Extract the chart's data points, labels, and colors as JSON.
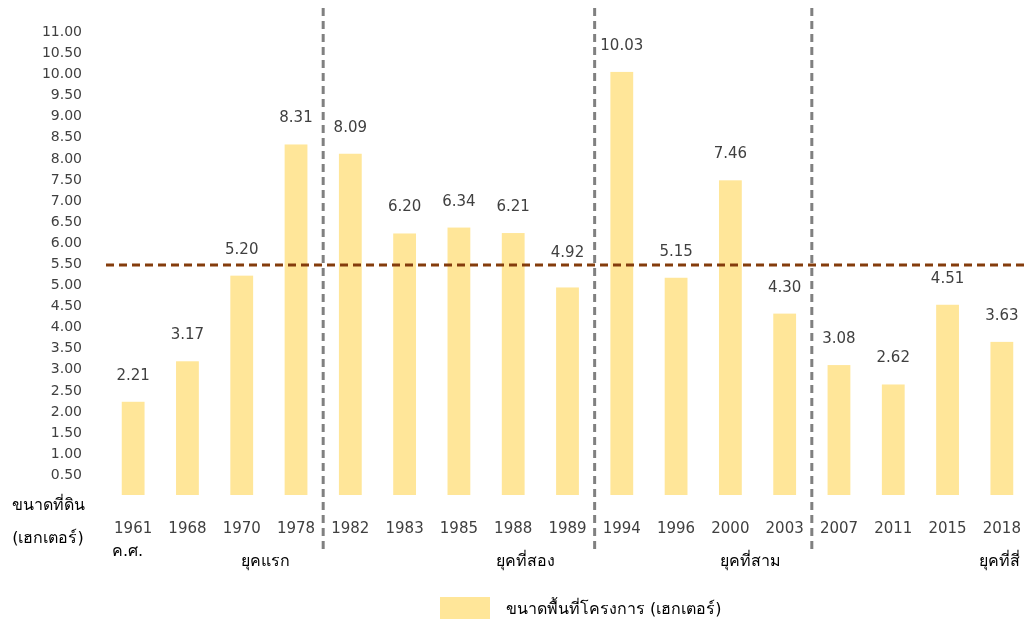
{
  "chart_data": {
    "type": "bar",
    "categories": [
      "1961",
      "1968",
      "1970",
      "1978",
      "1982",
      "1983",
      "1985",
      "1988",
      "1989",
      "1994",
      "1996",
      "2000",
      "2003",
      "2007",
      "2011",
      "2015",
      "2018"
    ],
    "series": [
      {
        "name": "ขนาดพื้นที่โครงการ (เฮกเตอร์)",
        "color": "#ffe699",
        "values": [
          2.21,
          3.17,
          5.2,
          8.31,
          8.09,
          6.2,
          6.34,
          6.21,
          4.92,
          10.03,
          5.15,
          7.46,
          4.3,
          3.08,
          2.62,
          4.51,
          3.63
        ]
      }
    ],
    "ylabel": "ขนาดที่ดิน (เฮกเตอร์)",
    "ylim": [
      0,
      11
    ],
    "yticks": [
      {
        "value": 0.5,
        "label": "0.50"
      },
      {
        "value": 1,
        "label": "1.00"
      },
      {
        "value": 1.5,
        "label": "1.50"
      },
      {
        "value": 2,
        "label": "2.00"
      },
      {
        "value": 2.5,
        "label": "2.50"
      },
      {
        "value": 3,
        "label": "3.00"
      },
      {
        "value": 3.5,
        "label": "3.50"
      },
      {
        "value": 4,
        "label": "4.00"
      },
      {
        "value": 4.5,
        "label": "4.50"
      },
      {
        "value": 5,
        "label": "5.00"
      },
      {
        "value": 5.5,
        "label": "5.50"
      },
      {
        "value": 6,
        "label": "6.00"
      },
      {
        "value": 6.5,
        "label": "6.50"
      },
      {
        "value": 7,
        "label": "7.00"
      },
      {
        "value": 7.5,
        "label": "7.50"
      },
      {
        "value": 8,
        "label": "8.00"
      },
      {
        "value": 8.5,
        "label": "8.50"
      },
      {
        "value": 9,
        "label": "9.00"
      },
      {
        "value": 9.5,
        "label": "9.50"
      },
      {
        "value": 10,
        "label": "10.00"
      },
      {
        "value": 10.5,
        "label": "10.50"
      },
      {
        "value": 11,
        "label": "11.00"
      }
    ],
    "value_labels": [
      "2.21",
      "3.17",
      "5.20",
      "8.31",
      "8.09",
      "6.20",
      "6.34",
      "6.21",
      "4.92",
      "10.03",
      "5.15",
      "7.46",
      "4.30",
      "3.08",
      "2.62",
      "4.51",
      "3.63"
    ],
    "ref_lines": [
      {
        "axis": "y",
        "value": 5.45,
        "color": "#843c0c",
        "line_style": "dashed"
      }
    ],
    "annotations": [
      "ค.ศ.",
      "ยุคแรก",
      "ยุคที่สอง",
      "ยุคที่สาม",
      "ยุคที่สี่"
    ],
    "legend": "bottom",
    "grid": false
  }
}
